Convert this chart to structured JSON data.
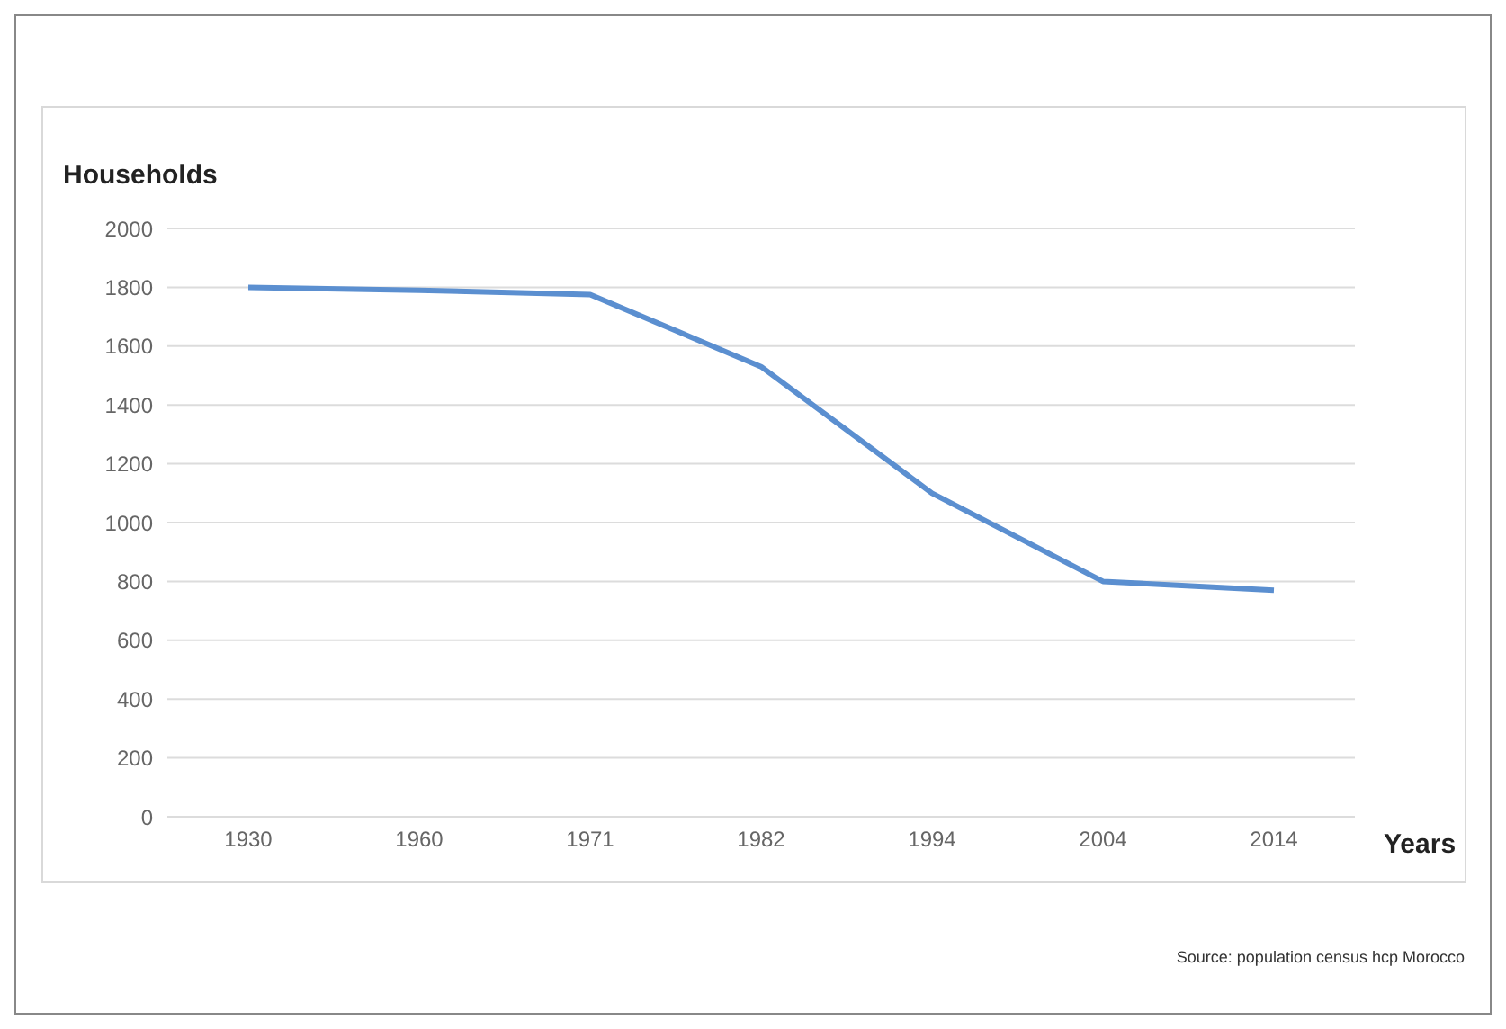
{
  "chart_data": {
    "type": "line",
    "ylabel": "Households",
    "xlabel": "Years",
    "categories": [
      "1930",
      "1960",
      "1971",
      "1982",
      "1994",
      "2004",
      "2014"
    ],
    "series": [
      {
        "color": "#5b8fd0",
        "values": [
          1800,
          1790,
          1775,
          1530,
          1100,
          800,
          770
        ]
      }
    ],
    "ylim": [
      0,
      2000
    ],
    "yticks": [
      0,
      200,
      400,
      600,
      800,
      1000,
      1200,
      1400,
      1600,
      1800,
      2000
    ],
    "grid": "y",
    "legend": false,
    "marker": "none",
    "annotations": [
      "Source: population census hcp Morocco"
    ]
  }
}
